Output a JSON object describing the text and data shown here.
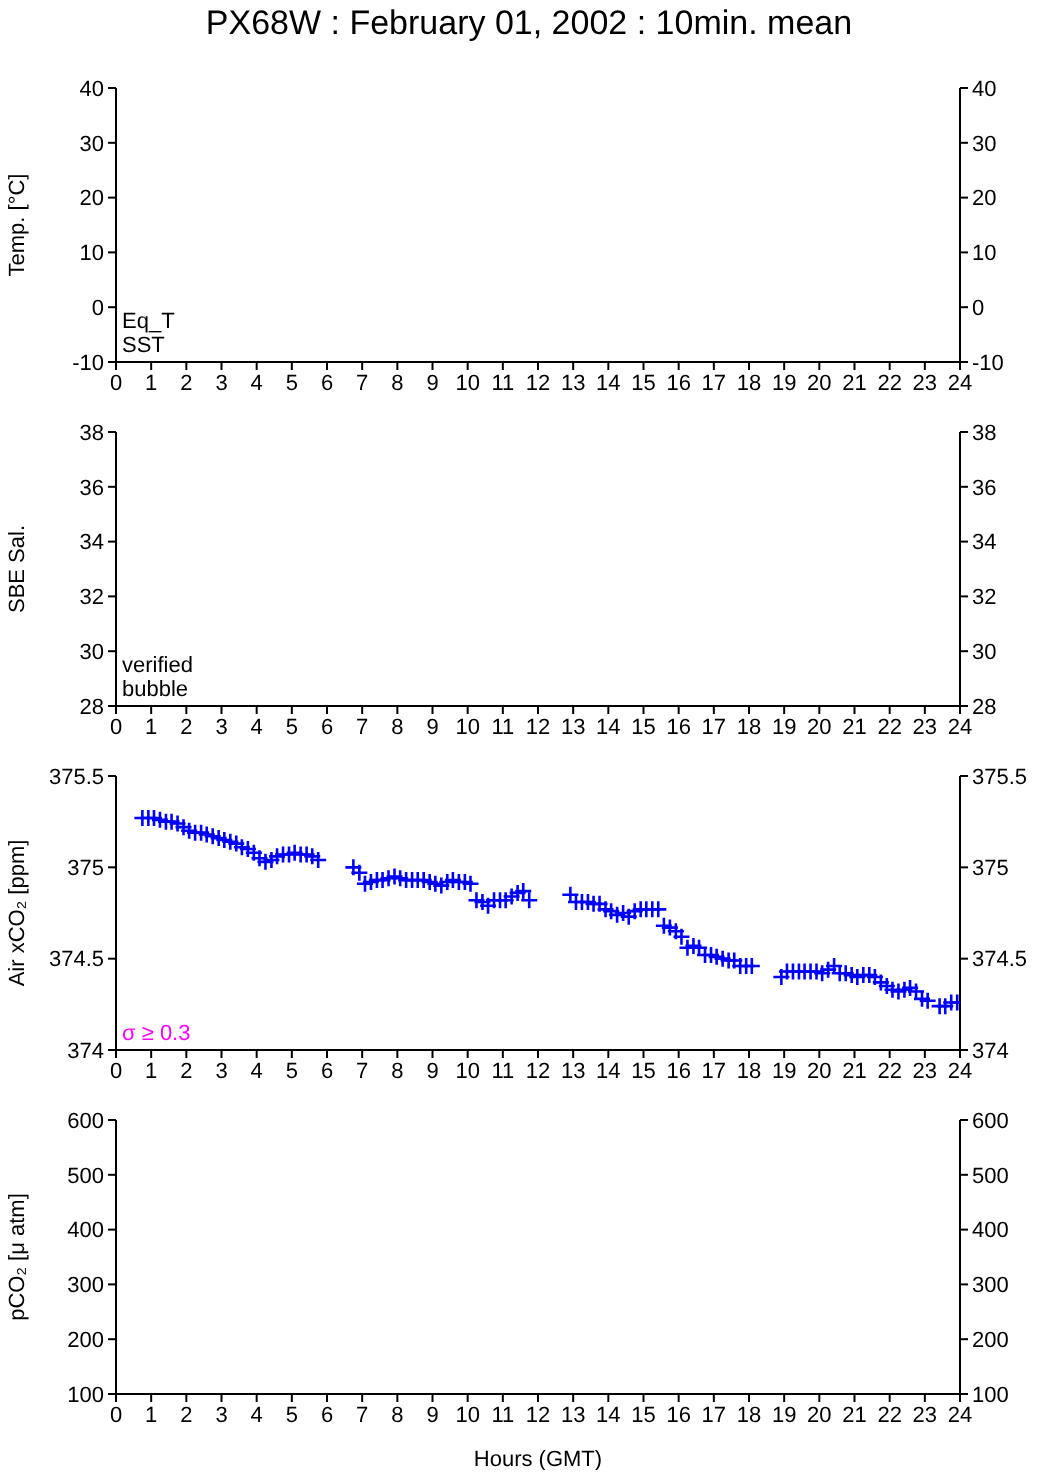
{
  "chart_data": [
    {
      "type": "scatter",
      "title": "PX68W : February 01, 2002 : 10min. mean",
      "ylabel": "Temp. [°C]",
      "xlim": [
        0,
        24
      ],
      "xticks": [
        0,
        1,
        2,
        3,
        4,
        5,
        6,
        7,
        8,
        9,
        10,
        11,
        12,
        13,
        14,
        15,
        16,
        17,
        18,
        19,
        20,
        21,
        22,
        23,
        24
      ],
      "ylim": [
        -10,
        40
      ],
      "yticks": [
        -10,
        0,
        10,
        20,
        30,
        40
      ],
      "y2lim": [
        -10,
        40
      ],
      "y2ticks": [
        -10,
        0,
        10,
        20,
        30,
        40
      ],
      "annotations": [
        "Eq_T",
        "SST"
      ]
    },
    {
      "type": "scatter",
      "ylabel": "SBE Sal.",
      "xlim": [
        0,
        24
      ],
      "xticks": [
        0,
        1,
        2,
        3,
        4,
        5,
        6,
        7,
        8,
        9,
        10,
        11,
        12,
        13,
        14,
        15,
        16,
        17,
        18,
        19,
        20,
        21,
        22,
        23,
        24
      ],
      "ylim": [
        28,
        38
      ],
      "yticks": [
        28,
        30,
        32,
        34,
        36,
        38
      ],
      "y2lim": [
        28,
        38
      ],
      "y2ticks": [
        28,
        30,
        32,
        34,
        36,
        38
      ],
      "annotations": [
        "verified",
        "bubble"
      ]
    },
    {
      "type": "scatter",
      "ylabel": "Air xCO₂ [ppm]",
      "xlim": [
        0,
        24
      ],
      "xticks": [
        0,
        1,
        2,
        3,
        4,
        5,
        6,
        7,
        8,
        9,
        10,
        11,
        12,
        13,
        14,
        15,
        16,
        17,
        18,
        19,
        20,
        21,
        22,
        23,
        24
      ],
      "ylim": [
        374,
        375.5
      ],
      "yticks": [
        374,
        374.5,
        375,
        375.5
      ],
      "y2lim": [
        374,
        375.5
      ],
      "y2ticks": [
        374,
        374.5,
        375,
        375.5
      ],
      "marker": "cross",
      "series": [
        {
          "color": "#0000ff",
          "x": [
            0.75,
            0.92,
            1.08,
            1.25,
            1.42,
            1.58,
            1.75,
            1.92,
            2.08,
            2.25,
            2.42,
            2.58,
            2.75,
            2.92,
            3.08,
            3.25,
            3.42,
            3.58,
            3.75,
            3.92,
            4.08,
            4.25,
            4.42,
            4.58,
            4.75,
            4.92,
            5.08,
            5.25,
            5.42,
            5.58,
            5.75,
            6.75,
            6.92,
            7.08,
            7.25,
            7.42,
            7.58,
            7.75,
            7.92,
            8.08,
            8.25,
            8.42,
            8.58,
            8.75,
            8.92,
            9.08,
            9.25,
            9.42,
            9.58,
            9.75,
            9.92,
            10.08,
            10.25,
            10.42,
            10.58,
            10.75,
            10.92,
            11.08,
            11.25,
            11.42,
            11.58,
            11.75,
            12.92,
            13.08,
            13.25,
            13.42,
            13.58,
            13.75,
            13.92,
            14.08,
            14.25,
            14.42,
            14.58,
            14.75,
            14.92,
            15.08,
            15.25,
            15.42,
            15.58,
            15.75,
            15.92,
            16.08,
            16.25,
            16.42,
            16.58,
            16.75,
            16.92,
            17.08,
            17.25,
            17.42,
            17.58,
            17.75,
            17.92,
            18.08,
            18.92,
            19.08,
            19.25,
            19.42,
            19.58,
            19.75,
            19.92,
            20.08,
            20.25,
            20.42,
            20.58,
            20.75,
            20.92,
            21.08,
            21.25,
            21.42,
            21.58,
            21.75,
            21.92,
            22.08,
            22.25,
            22.42,
            22.58,
            22.75,
            22.92,
            23.08,
            23.42,
            23.58,
            23.75,
            23.92
          ],
          "values": [
            375.27,
            375.27,
            375.27,
            375.26,
            375.25,
            375.25,
            375.24,
            375.22,
            375.2,
            375.19,
            375.19,
            375.18,
            375.17,
            375.16,
            375.15,
            375.14,
            375.13,
            375.11,
            375.1,
            375.08,
            375.05,
            375.03,
            375.04,
            375.06,
            375.07,
            375.07,
            375.08,
            375.07,
            375.07,
            375.06,
            375.04,
            375,
            374.97,
            374.91,
            374.92,
            374.93,
            374.93,
            374.94,
            374.95,
            374.94,
            374.93,
            374.93,
            374.93,
            374.93,
            374.92,
            374.91,
            374.9,
            374.92,
            374.93,
            374.92,
            374.92,
            374.91,
            374.82,
            374.81,
            374.79,
            374.82,
            374.82,
            374.82,
            374.84,
            374.86,
            374.87,
            374.82,
            374.85,
            374.81,
            374.81,
            374.81,
            374.8,
            374.8,
            374.77,
            374.76,
            374.74,
            374.75,
            374.73,
            374.76,
            374.77,
            374.77,
            374.77,
            374.77,
            374.68,
            374.67,
            374.65,
            374.62,
            374.56,
            374.57,
            374.56,
            374.52,
            374.52,
            374.51,
            374.5,
            374.49,
            374.49,
            374.46,
            374.46,
            374.46,
            374.4,
            374.43,
            374.43,
            374.43,
            374.43,
            374.43,
            374.43,
            374.42,
            374.44,
            374.46,
            374.42,
            374.42,
            374.41,
            374.4,
            374.41,
            374.41,
            374.4,
            374.37,
            374.35,
            374.33,
            374.32,
            374.33,
            374.34,
            374.32,
            374.28,
            374.27,
            374.24,
            374.24,
            374.26,
            374.26
          ]
        },
        {
          "name": "σ ≥ 0.3",
          "color": "#ff00ff"
        }
      ]
    },
    {
      "type": "scatter",
      "ylabel": "pCO₂ [μ atm]",
      "xlabel": "Hours (GMT)",
      "xlim": [
        0,
        24
      ],
      "xticks": [
        0,
        1,
        2,
        3,
        4,
        5,
        6,
        7,
        8,
        9,
        10,
        11,
        12,
        13,
        14,
        15,
        16,
        17,
        18,
        19,
        20,
        21,
        22,
        23,
        24
      ],
      "ylim": [
        100,
        600
      ],
      "yticks": [
        100,
        200,
        300,
        400,
        500,
        600
      ],
      "y2lim": [
        100,
        600
      ],
      "y2ticks": [
        100,
        200,
        300,
        400,
        500,
        600
      ]
    }
  ]
}
